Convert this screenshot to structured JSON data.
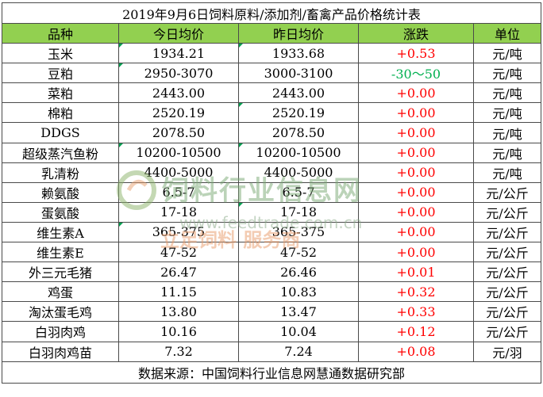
{
  "title": "2019年9月6日饲料原料/添加剂/畜禽产品价格统计表",
  "headers": [
    "品种",
    "今日均价",
    "昨日均价",
    "涨跌",
    "单位"
  ],
  "rows": [
    {
      "name": "玉米",
      "today": "1934.21",
      "yesterday": "1933.68",
      "change": "+0.53",
      "unit": "元/吨",
      "dir": "up"
    },
    {
      "name": "豆粕",
      "today": "2950-3070",
      "yesterday": "3000-3100",
      "change": "-30～50",
      "unit": "元/吨",
      "dir": "down"
    },
    {
      "name": "菜粕",
      "today": "2443.00",
      "yesterday": "2443.00",
      "change": "+0.00",
      "unit": "元/吨",
      "dir": "up"
    },
    {
      "name": "棉粕",
      "today": "2520.19",
      "yesterday": "2520.19",
      "change": "+0.00",
      "unit": "元/吨",
      "dir": "up"
    },
    {
      "name": "DDGS",
      "today": "2078.50",
      "yesterday": "2078.50",
      "change": "+0.00",
      "unit": "元/吨",
      "dir": "up"
    },
    {
      "name": "超级蒸汽鱼粉",
      "today": "10200-10500",
      "yesterday": "10200-10500",
      "change": "+0.00",
      "unit": "元/吨",
      "dir": "up"
    },
    {
      "name": "乳清粉",
      "today": "4400-5000",
      "yesterday": "4400-5000",
      "change": "+0.00",
      "unit": "元/吨",
      "dir": "up"
    },
    {
      "name": "赖氨酸",
      "today": "6.5-7",
      "yesterday": "6.5-7",
      "change": "+0.00",
      "unit": "元/公斤",
      "dir": "up"
    },
    {
      "name": "蛋氨酸",
      "today": "17-18",
      "yesterday": "17-18",
      "change": "+0.00",
      "unit": "元/公斤",
      "dir": "up"
    },
    {
      "name": "维生素A",
      "today": "365-375",
      "yesterday": "365-375",
      "change": "+0.00",
      "unit": "元/公斤",
      "dir": "up"
    },
    {
      "name": "维生素E",
      "today": "47-52",
      "yesterday": "47-52",
      "change": "+0.00",
      "unit": "元/公斤",
      "dir": "up"
    },
    {
      "name": "外三元毛猪",
      "today": "26.47",
      "yesterday": "26.46",
      "change": "+0.01",
      "unit": "元/公斤",
      "dir": "up"
    },
    {
      "name": "鸡蛋",
      "today": "11.15",
      "yesterday": "10.83",
      "change": "+0.32",
      "unit": "元/公斤",
      "dir": "up"
    },
    {
      "name": "淘汰蛋毛鸡",
      "today": "13.80",
      "yesterday": "13.47",
      "change": "+0.33",
      "unit": "元/公斤",
      "dir": "up"
    },
    {
      "name": "白羽肉鸡",
      "today": "10.16",
      "yesterday": "10.04",
      "change": "+0.12",
      "unit": "元/公斤",
      "dir": "up"
    },
    {
      "name": "白羽肉鸡苗",
      "today": "7.32",
      "yesterday": "7.24",
      "change": "+0.08",
      "unit": "元/羽",
      "dir": "up"
    }
  ],
  "source": "数据来源：中国饲料行业信息网慧通数据研究部",
  "watermark": {
    "name": "饲料行业信息网",
    "slogan": "立足饲料  服务商",
    "url": "www.feedtrade.com.cn"
  },
  "colors": {
    "header_bg": "#92d050",
    "up": "#ff0000",
    "down": "#00b050",
    "marker": "#00a050"
  }
}
